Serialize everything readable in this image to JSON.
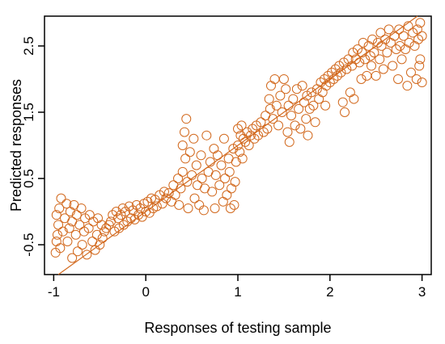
{
  "chart_data": {
    "type": "scatter",
    "title": "",
    "xlabel": "Responses of testing sample",
    "ylabel": "Predicted responses",
    "xlim": [
      -1.1,
      3.1
    ],
    "ylim": [
      -0.95,
      2.95
    ],
    "x_ticks": [
      -1,
      0,
      1,
      2,
      3
    ],
    "x_tick_labels": [
      "-1",
      "0",
      "1",
      "2",
      "3"
    ],
    "y_ticks": [
      -0.5,
      0.5,
      1.5,
      2.5
    ],
    "y_tick_labels": [
      "-0.5",
      "0.5",
      "1.5",
      "2.5"
    ],
    "grid": false,
    "legend": "none",
    "marker": "open-circle",
    "reference_line": {
      "slope": 1,
      "intercept": 0
    },
    "colors": {
      "points": "#d2691e",
      "line": "#d2691e",
      "axes": "#000000"
    },
    "series": [
      {
        "points": [
          [
            -0.98,
            -0.62
          ],
          [
            -0.97,
            -0.45
          ],
          [
            -0.96,
            -0.35
          ],
          [
            -0.95,
            -0.2
          ],
          [
            -0.97,
            -0.05
          ],
          [
            -0.94,
            0.05
          ],
          [
            -0.92,
            0.2
          ],
          [
            -0.93,
            -0.55
          ],
          [
            -0.9,
            -0.3
          ],
          [
            -0.88,
            -0.1
          ],
          [
            -0.86,
            0.12
          ],
          [
            -0.85,
            -0.45
          ],
          [
            -0.83,
            -0.25
          ],
          [
            -0.82,
            0.0
          ],
          [
            -0.8,
            -0.7
          ],
          [
            -0.8,
            -0.15
          ],
          [
            -0.78,
            0.1
          ],
          [
            -0.76,
            -0.35
          ],
          [
            -0.75,
            -0.05
          ],
          [
            -0.74,
            -0.6
          ],
          [
            -0.72,
            -0.2
          ],
          [
            -0.7,
            0.05
          ],
          [
            -0.69,
            -0.5
          ],
          [
            -0.67,
            -0.3
          ],
          [
            -0.66,
            -0.1
          ],
          [
            -0.64,
            -0.65
          ],
          [
            -0.62,
            -0.25
          ],
          [
            -0.61,
            -0.05
          ],
          [
            -0.58,
            -0.45
          ],
          [
            -0.57,
            -0.15
          ],
          [
            -0.55,
            -0.58
          ],
          [
            -0.53,
            -0.35
          ],
          [
            -0.52,
            -0.1
          ],
          [
            -0.5,
            -0.5
          ],
          [
            -0.48,
            -0.2
          ],
          [
            -0.47,
            -0.4
          ],
          [
            -0.45,
            -0.3
          ],
          [
            -0.43,
            -0.25
          ],
          [
            -0.4,
            -0.2
          ],
          [
            -0.38,
            -0.15
          ],
          [
            -0.36,
            -0.05
          ],
          [
            -0.34,
            -0.3
          ],
          [
            -0.32,
            0.0
          ],
          [
            -0.3,
            -0.1
          ],
          [
            -0.29,
            -0.25
          ],
          [
            -0.27,
            -0.05
          ],
          [
            -0.25,
            0.05
          ],
          [
            -0.24,
            -0.2
          ],
          [
            -0.22,
            0.0
          ],
          [
            -0.2,
            -0.15
          ],
          [
            -0.18,
            0.08
          ],
          [
            -0.16,
            -0.1
          ],
          [
            -0.14,
            0.02
          ],
          [
            -0.12,
            -0.12
          ],
          [
            -0.1,
            0.1
          ],
          [
            -0.08,
            -0.05
          ],
          [
            -0.06,
            0.05
          ],
          [
            -0.04,
            -0.08
          ],
          [
            -0.02,
            0.12
          ],
          [
            0.0,
            0.0
          ],
          [
            0.02,
            0.15
          ],
          [
            0.04,
            -0.02
          ],
          [
            0.06,
            0.2
          ],
          [
            0.08,
            0.05
          ],
          [
            0.1,
            0.18
          ],
          [
            0.12,
            0.08
          ],
          [
            0.15,
            0.25
          ],
          [
            0.18,
            0.12
          ],
          [
            0.2,
            0.3
          ],
          [
            0.22,
            0.2
          ],
          [
            0.25,
            0.28
          ],
          [
            0.28,
            0.15
          ],
          [
            0.3,
            0.4
          ],
          [
            0.32,
            0.25
          ],
          [
            0.35,
            0.5
          ],
          [
            0.36,
            0.1
          ],
          [
            0.38,
            0.35
          ],
          [
            0.4,
            0.6
          ],
          [
            0.4,
            1.0
          ],
          [
            0.42,
            1.2
          ],
          [
            0.43,
            0.8
          ],
          [
            0.44,
            1.4
          ],
          [
            0.45,
            0.45
          ],
          [
            0.46,
            0.05
          ],
          [
            0.48,
            0.9
          ],
          [
            0.5,
            0.55
          ],
          [
            0.52,
            1.1
          ],
          [
            0.53,
            0.2
          ],
          [
            0.55,
            0.7
          ],
          [
            0.56,
            0.4
          ],
          [
            0.58,
            0.1
          ],
          [
            0.6,
            0.85
          ],
          [
            0.61,
            0.5
          ],
          [
            0.63,
            0.02
          ],
          [
            0.64,
            0.35
          ],
          [
            0.66,
            1.15
          ],
          [
            0.68,
            0.6
          ],
          [
            0.7,
            0.75
          ],
          [
            0.72,
            0.3
          ],
          [
            0.74,
            0.95
          ],
          [
            0.75,
            0.05
          ],
          [
            0.76,
            0.55
          ],
          [
            0.78,
            0.85
          ],
          [
            0.8,
            0.4
          ],
          [
            0.82,
            0.7
          ],
          [
            0.84,
            0.15
          ],
          [
            0.85,
            1.1
          ],
          [
            0.86,
            0.5
          ],
          [
            0.88,
            0.25
          ],
          [
            0.9,
            0.8
          ],
          [
            0.91,
            0.6
          ],
          [
            0.92,
            0.05
          ],
          [
            0.93,
            0.35
          ],
          [
            0.95,
            0.95
          ],
          [
            0.96,
            0.1
          ],
          [
            0.97,
            0.45
          ],
          [
            0.98,
            0.75
          ],
          [
            1.0,
            1.0
          ],
          [
            1.0,
            1.25
          ],
          [
            1.02,
            0.9
          ],
          [
            1.03,
            1.15
          ],
          [
            1.04,
            1.3
          ],
          [
            1.05,
            0.8
          ],
          [
            1.06,
            1.1
          ],
          [
            1.08,
            1.05
          ],
          [
            1.1,
            1.2
          ],
          [
            1.12,
            1.0
          ],
          [
            1.14,
            1.15
          ],
          [
            1.16,
            1.25
          ],
          [
            1.18,
            1.1
          ],
          [
            1.2,
            1.3
          ],
          [
            1.22,
            1.15
          ],
          [
            1.25,
            1.35
          ],
          [
            1.28,
            1.2
          ],
          [
            1.3,
            1.45
          ],
          [
            1.32,
            1.25
          ],
          [
            1.34,
            1.7
          ],
          [
            1.35,
            1.55
          ],
          [
            1.36,
            1.9
          ],
          [
            1.38,
            1.4
          ],
          [
            1.4,
            2.0
          ],
          [
            1.42,
            1.6
          ],
          [
            1.44,
            1.3
          ],
          [
            1.46,
            1.75
          ],
          [
            1.48,
            1.5
          ],
          [
            1.5,
            2.0
          ],
          [
            1.52,
            1.85
          ],
          [
            1.54,
            1.2
          ],
          [
            1.55,
            1.6
          ],
          [
            1.56,
            1.05
          ],
          [
            1.58,
            1.45
          ],
          [
            1.6,
            1.7
          ],
          [
            1.62,
            1.3
          ],
          [
            1.64,
            1.85
          ],
          [
            1.66,
            1.55
          ],
          [
            1.68,
            1.25
          ],
          [
            1.7,
            1.9
          ],
          [
            1.72,
            1.65
          ],
          [
            1.74,
            1.4
          ],
          [
            1.75,
            1.75
          ],
          [
            1.76,
            1.15
          ],
          [
            1.78,
            1.55
          ],
          [
            1.8,
            1.8
          ],
          [
            1.82,
            1.6
          ],
          [
            1.84,
            1.35
          ],
          [
            1.86,
            1.85
          ],
          [
            1.88,
            1.7
          ],
          [
            1.9,
            1.95
          ],
          [
            1.92,
            1.8
          ],
          [
            1.94,
            2.0
          ],
          [
            1.95,
            1.6
          ],
          [
            1.96,
            1.9
          ],
          [
            1.98,
            2.05
          ],
          [
            2.0,
            1.95
          ],
          [
            2.02,
            2.1
          ],
          [
            2.04,
            2.0
          ],
          [
            2.06,
            2.15
          ],
          [
            2.08,
            2.05
          ],
          [
            2.1,
            2.2
          ],
          [
            2.12,
            2.1
          ],
          [
            2.14,
            1.65
          ],
          [
            2.15,
            2.25
          ],
          [
            2.16,
            1.5
          ],
          [
            2.18,
            2.15
          ],
          [
            2.2,
            2.3
          ],
          [
            2.22,
            1.8
          ],
          [
            2.24,
            2.2
          ],
          [
            2.25,
            2.4
          ],
          [
            2.26,
            1.7
          ],
          [
            2.28,
            2.3
          ],
          [
            2.3,
            2.45
          ],
          [
            2.32,
            2.25
          ],
          [
            2.34,
            2.0
          ],
          [
            2.35,
            2.4
          ],
          [
            2.36,
            2.55
          ],
          [
            2.38,
            2.3
          ],
          [
            2.4,
            2.05
          ],
          [
            2.42,
            2.5
          ],
          [
            2.44,
            2.35
          ],
          [
            2.45,
            2.2
          ],
          [
            2.46,
            2.6
          ],
          [
            2.48,
            2.4
          ],
          [
            2.5,
            2.05
          ],
          [
            2.52,
            2.55
          ],
          [
            2.54,
            2.3
          ],
          [
            2.55,
            2.7
          ],
          [
            2.56,
            2.5
          ],
          [
            2.58,
            2.15
          ],
          [
            2.6,
            2.6
          ],
          [
            2.62,
            2.4
          ],
          [
            2.64,
            2.75
          ],
          [
            2.66,
            2.55
          ],
          [
            2.68,
            2.2
          ],
          [
            2.7,
            2.65
          ],
          [
            2.72,
            2.45
          ],
          [
            2.74,
            2.0
          ],
          [
            2.75,
            2.75
          ],
          [
            2.76,
            2.5
          ],
          [
            2.78,
            2.3
          ],
          [
            2.8,
            2.65
          ],
          [
            2.82,
            2.45
          ],
          [
            2.84,
            1.9
          ],
          [
            2.85,
            2.8
          ],
          [
            2.86,
            2.55
          ],
          [
            2.88,
            2.1
          ],
          [
            2.9,
            2.7
          ],
          [
            2.92,
            2.5
          ],
          [
            2.94,
            2.0
          ],
          [
            2.95,
            2.75
          ],
          [
            2.96,
            2.6
          ],
          [
            2.98,
            2.3
          ],
          [
            2.98,
            2.85
          ],
          [
            3.0,
            2.65
          ],
          [
            3.0,
            1.95
          ],
          [
            2.97,
            2.2
          ]
        ]
      }
    ]
  }
}
